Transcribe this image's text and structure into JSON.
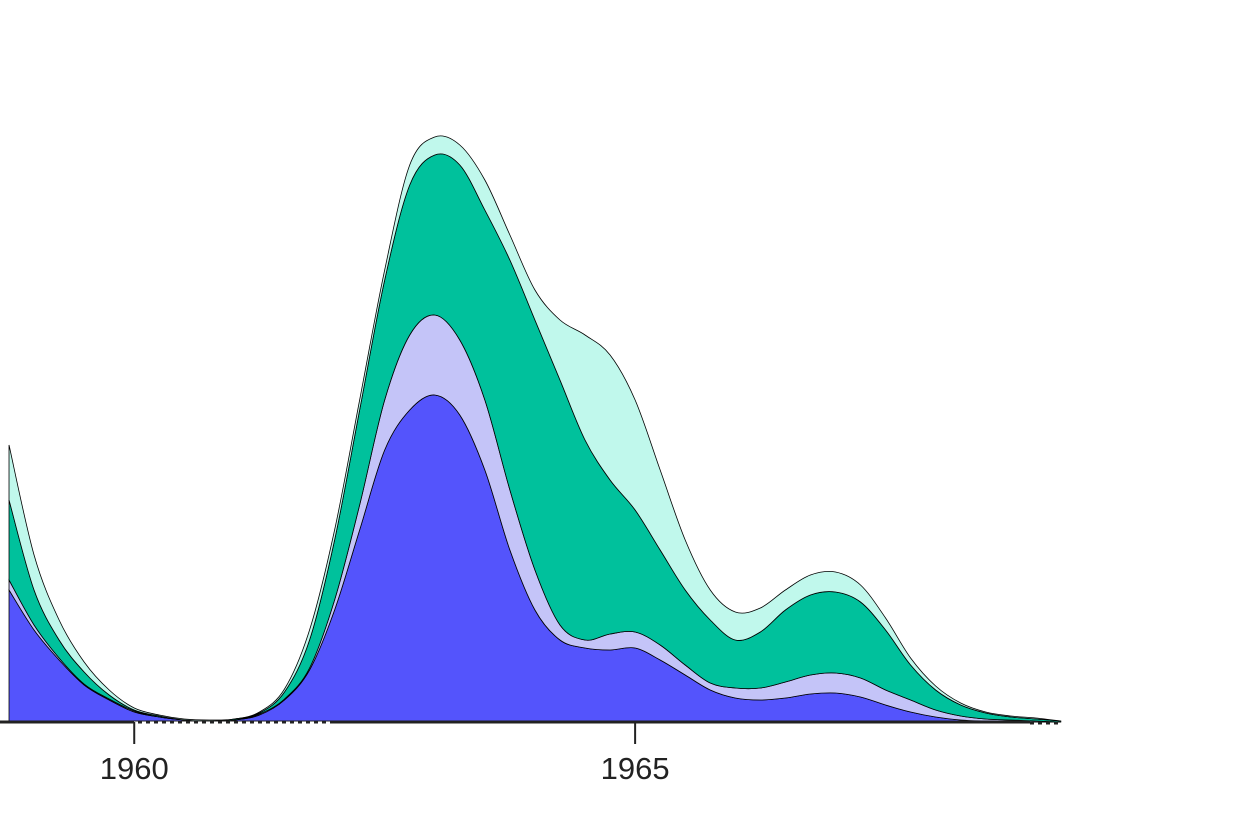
{
  "chart_data": {
    "type": "area",
    "stacked": true,
    "x": [
      1958.75,
      1959,
      1959.25,
      1959.5,
      1959.75,
      1960,
      1960.25,
      1960.5,
      1960.75,
      1961,
      1961.25,
      1961.5,
      1961.75,
      1962,
      1962.25,
      1962.5,
      1962.75,
      1963,
      1963.25,
      1963.5,
      1963.75,
      1964,
      1964.25,
      1964.5,
      1964.75,
      1965,
      1965.25,
      1965.5,
      1965.75,
      1966,
      1966.25,
      1966.5,
      1966.75,
      1967,
      1967.25,
      1967.5,
      1967.75,
      1968,
      1968.25,
      1968.5,
      1968.75,
      1969,
      1969.25
    ],
    "series": [
      {
        "color": "#5454fc",
        "values": [
          13.2,
          9.2,
          6.2,
          3.7,
          2.2,
          1.0,
          0.5,
          0.2,
          0.1,
          0.2,
          0.7,
          2.2,
          5.2,
          11.2,
          19.2,
          27.2,
          31.2,
          32.7,
          30.7,
          25.2,
          17.2,
          11.2,
          8.2,
          7.4,
          7.2,
          7.4,
          6.2,
          4.7,
          3.2,
          2.4,
          2.2,
          2.4,
          2.8,
          2.9,
          2.5,
          1.7,
          1.0,
          0.5,
          0.2,
          0.1,
          0.1,
          0,
          0
        ]
      },
      {
        "color": "#c4c4f8",
        "values": [
          1.0,
          0.5,
          0.2,
          0.1,
          0.1,
          0.1,
          0,
          0,
          0,
          0,
          0.1,
          0.1,
          0.2,
          1.0,
          2.5,
          5.0,
          7.5,
          8.0,
          7.5,
          7.0,
          6.0,
          4.0,
          1.5,
          0.8,
          1.6,
          1.6,
          1.5,
          1.0,
          0.7,
          1.0,
          1.2,
          1.6,
          1.9,
          2.0,
          1.9,
          1.5,
          1.2,
          0.7,
          0.4,
          0.2,
          0.1,
          0.1,
          0
        ]
      },
      {
        "color": "#00c19c",
        "values": [
          8.0,
          3.5,
          1.8,
          1.2,
          0.4,
          0.1,
          0.1,
          0,
          0,
          0.1,
          0.1,
          0.7,
          2.8,
          6.0,
          9.5,
          12.0,
          15.0,
          16.0,
          17.5,
          19.0,
          23.0,
          25.0,
          24.5,
          20.0,
          15.4,
          12.2,
          9.5,
          7.5,
          6.3,
          4.8,
          5.6,
          7.2,
          8.0,
          8.1,
          7.6,
          6.0,
          3.5,
          2.0,
          1.1,
          0.6,
          0.3,
          0.2,
          0.1
        ]
      },
      {
        "color": "#c0f8ec",
        "values": [
          5.5,
          3.5,
          2.0,
          1.0,
          0.5,
          0.2,
          0.1,
          0.1,
          0.1,
          0,
          0.1,
          0.3,
          1.0,
          1.0,
          1.0,
          1.0,
          2.0,
          1.8,
          2.0,
          3.0,
          2.5,
          3.0,
          6.0,
          10.5,
          12.5,
          11.0,
          8.0,
          5.0,
          3.0,
          2.8,
          2.4,
          2.0,
          2.0,
          2.0,
          1.7,
          1.2,
          0.7,
          0.4,
          0.2,
          0.1,
          0.1,
          0.1,
          0
        ]
      }
    ],
    "xlim": [
      1958.66,
      1970
    ],
    "xticks": [
      1960,
      1965
    ],
    "ylim": [
      0,
      60
    ]
  }
}
